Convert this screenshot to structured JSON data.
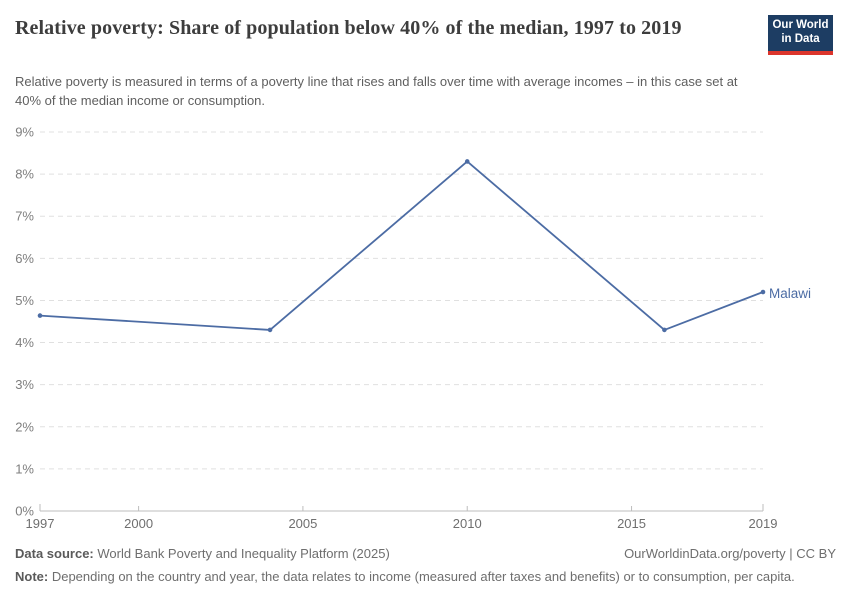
{
  "header": {
    "title": "Relative poverty: Share of population below 40% of the median, 1997 to 2019",
    "subtitle": "Relative poverty is measured in terms of a poverty line that rises and falls over time with average incomes – in this case set at 40% of the median income or consumption.",
    "logo": {
      "line1": "Our World",
      "line2": "in Data"
    }
  },
  "chart_data": {
    "type": "line",
    "title": "Relative poverty: Share of population below 40% of the median, 1997 to 2019",
    "x": [
      1997,
      2004,
      2010,
      2016,
      2019
    ],
    "series": [
      {
        "name": "Malawi",
        "values": [
          4.64,
          4.3,
          8.3,
          4.3,
          5.2
        ],
        "color": "#4c6ca4"
      }
    ],
    "entity_label": "Malawi",
    "xlim": [
      1997,
      2019
    ],
    "ylim": [
      0,
      9
    ],
    "xticks": [
      1997,
      2000,
      2005,
      2010,
      2015,
      2019
    ],
    "yticks": [
      0,
      1,
      2,
      3,
      4,
      5,
      6,
      7,
      8,
      9
    ],
    "ytick_suffix": "%",
    "grid": "horizontal-dashed",
    "legend_position": "end-of-line-label"
  },
  "footer": {
    "datasource_label": "Data source:",
    "datasource_value": " World Bank Poverty and Inequality Platform (2025)",
    "attribution": "OurWorldinData.org/poverty | CC BY",
    "note_label": "Note:",
    "note_value": " Depending on the country and year, the data relates to income (measured after taxes and benefits) or to consumption, per capita."
  },
  "colors": {
    "series_blue": "#4c6ca4",
    "logo_navy": "#1d3d63",
    "logo_red": "#dc352c",
    "gridline": "#e0e0e0",
    "axis": "#bdbdbd"
  }
}
